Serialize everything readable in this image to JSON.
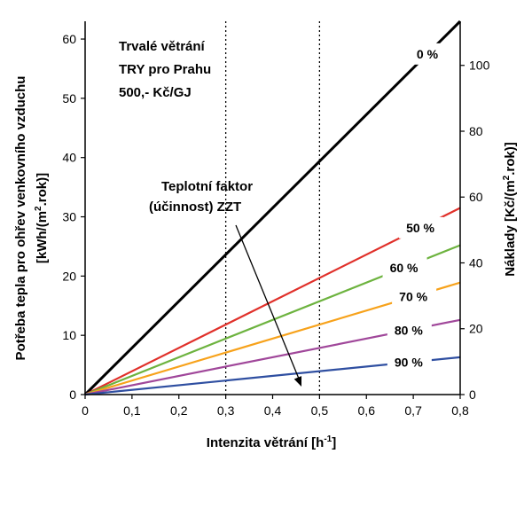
{
  "chart_data": {
    "type": "line",
    "title_lines": [
      "Trvalé větrání",
      "TRY pro Prahu",
      "500,- Kč/GJ"
    ],
    "xlabel_main": "Intenzita větrání [h",
    "xlabel_sup": "-1",
    "xlabel_end": "]",
    "ylabel_line1": "Potřeba tepla pro ohřev venkovního vzduchu",
    "ylabel_line2_pre": "[kWh/(m",
    "ylabel_line2_sup": "2",
    "ylabel_line2_post": ".rok)]",
    "y2label_pre": "Náklady [Kč/(m",
    "y2label_sup": "2",
    "y2label_post": ".rok)]",
    "annotation_lines": [
      "Teplotní faktor",
      "(účinnost) ZZT"
    ],
    "xlim": [
      0,
      0.8
    ],
    "ylim": [
      0,
      63
    ],
    "y2lim": [
      0,
      113.4
    ],
    "x_ticks": [
      0,
      0.1,
      0.2,
      0.3,
      0.4,
      0.5,
      0.6,
      0.7,
      0.8
    ],
    "x_tick_labels": [
      "0",
      "0,1",
      "0,2",
      "0,3",
      "0,4",
      "0,5",
      "0,6",
      "0,7",
      "0,8"
    ],
    "y_ticks": [
      0,
      10,
      20,
      30,
      40,
      50,
      60
    ],
    "y_tick_labels": [
      "0",
      "10",
      "20",
      "30",
      "40",
      "50",
      "60"
    ],
    "y2_ticks": [
      0,
      20,
      40,
      60,
      80,
      100
    ],
    "y2_tick_labels": [
      "0",
      "20",
      "40",
      "60",
      "80",
      "100"
    ],
    "vertical_reference_lines": [
      0.3,
      0.5
    ],
    "grid": false,
    "series": [
      {
        "name": "0 %",
        "color": "#000000",
        "x": [
          0,
          0.8
        ],
        "y": [
          0,
          63.0
        ]
      },
      {
        "name": "50 %",
        "color": "#e0302a",
        "x": [
          0,
          0.8
        ],
        "y": [
          0,
          31.5
        ]
      },
      {
        "name": "60 %",
        "color": "#6db33f",
        "x": [
          0,
          0.8
        ],
        "y": [
          0,
          25.2
        ]
      },
      {
        "name": "70 %",
        "color": "#f7a21b",
        "x": [
          0,
          0.8
        ],
        "y": [
          0,
          18.9
        ]
      },
      {
        "name": "80 %",
        "color": "#a0479a",
        "x": [
          0,
          0.8
        ],
        "y": [
          0,
          12.6
        ]
      },
      {
        "name": "90 %",
        "color": "#2f4fa1",
        "x": [
          0,
          0.8
        ],
        "y": [
          0,
          6.3
        ]
      }
    ]
  }
}
